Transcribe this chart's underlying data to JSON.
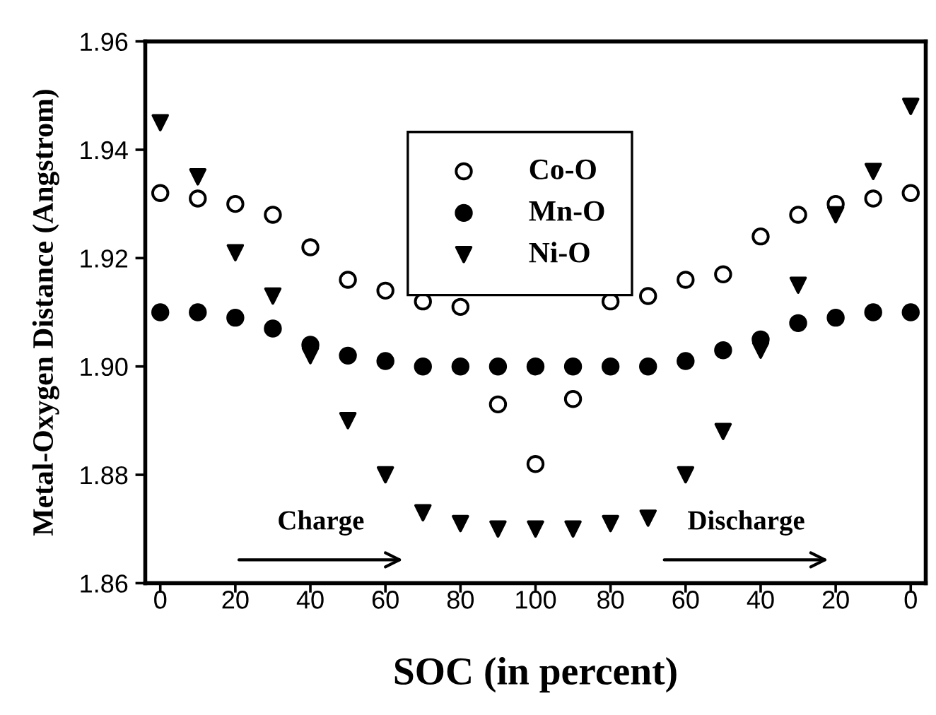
{
  "chart_data": {
    "type": "scatter",
    "xlabel": "SOC (in percent)",
    "ylabel": "Metal-Oxygen Distance (Angstrom)",
    "categories": [
      "0",
      null,
      "20",
      null,
      "40",
      null,
      "60",
      null,
      "80",
      null,
      "100",
      null,
      "80",
      null,
      "60",
      null,
      "40",
      null,
      "20",
      null,
      "0"
    ],
    "ylim": [
      1.86,
      1.96
    ],
    "yticks": [
      {
        "value": 1.86,
        "label": "1.86"
      },
      {
        "value": 1.88,
        "label": "1.88"
      },
      {
        "value": 1.9,
        "label": "1.90"
      },
      {
        "value": 1.92,
        "label": "1.92"
      },
      {
        "value": 1.94,
        "label": "1.94"
      },
      {
        "value": 1.96,
        "label": "1.96"
      }
    ],
    "legend": "top",
    "series": [
      {
        "name": "Co-O",
        "color": "#ffffff",
        "marker": "circle",
        "values": [
          1.932,
          1.931,
          1.93,
          1.928,
          1.922,
          1.916,
          1.914,
          1.912,
          1.911,
          1.893,
          1.882,
          1.894,
          1.912,
          1.913,
          1.916,
          1.917,
          1.924,
          1.928,
          1.93,
          1.931,
          1.932
        ]
      },
      {
        "name": "Mn-O",
        "color": "#000000",
        "marker": "circle",
        "values": [
          1.91,
          1.91,
          1.909,
          1.907,
          1.904,
          1.902,
          1.901,
          1.9,
          1.9,
          1.9,
          1.9,
          1.9,
          1.9,
          1.9,
          1.901,
          1.903,
          1.905,
          1.908,
          1.909,
          1.91,
          1.91
        ]
      },
      {
        "name": "Ni-O",
        "color": "#000000",
        "marker": "triangle",
        "values": [
          1.945,
          1.935,
          1.921,
          1.913,
          1.902,
          1.89,
          1.88,
          1.873,
          1.871,
          1.87,
          1.87,
          1.87,
          1.871,
          1.872,
          1.88,
          1.888,
          1.903,
          1.915,
          1.928,
          1.936,
          1.948
        ]
      }
    ],
    "annotations": [
      "Charge",
      "Discharge"
    ]
  }
}
